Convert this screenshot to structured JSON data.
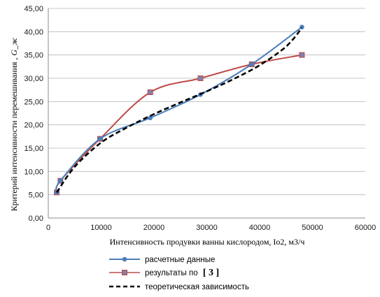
{
  "chart_data": {
    "type": "line",
    "title": "",
    "xlabel": "Интенсивность продувки ванны кислородом,  Io2, м3/ч",
    "ylabel_prefix": "Критерий интенсивности перемешивания ,  ",
    "ylabel_symbol": "G_ж",
    "xlim": [
      0,
      60000
    ],
    "ylim": [
      0,
      45
    ],
    "x_ticks": [
      0,
      10000,
      20000,
      30000,
      40000,
      50000,
      60000
    ],
    "x_tick_labels": [
      "0",
      "10000",
      "20000",
      "30000",
      "40000",
      "50000",
      "60000"
    ],
    "y_ticks": [
      0,
      5,
      10,
      15,
      20,
      25,
      30,
      35,
      40,
      45
    ],
    "y_tick_labels": [
      "0,00",
      "5,00",
      "10,00",
      "15,00",
      "20,00",
      "25,00",
      "30,00",
      "35,00",
      "40,00",
      "45,00"
    ],
    "grid": true,
    "legend_position": "bottom",
    "series": [
      {
        "name": "расчетные данные",
        "color": "#4a7ebb",
        "marker": "circle",
        "style": "solid",
        "x": [
          1600,
          2300,
          9800,
          19300,
          28800,
          38500,
          48000
        ],
        "y": [
          5.5,
          8.0,
          17.0,
          21.5,
          26.5,
          33.0,
          41.0
        ]
      },
      {
        "name": "результаты по",
        "ref": "[ 3 ]",
        "color": "#be4b48",
        "marker": "square",
        "style": "solid",
        "x": [
          1600,
          2300,
          9800,
          19300,
          28800,
          38500,
          48000
        ],
        "y": [
          5.5,
          8.0,
          17.0,
          27.0,
          30.0,
          33.0,
          35.0
        ]
      },
      {
        "name": "теоретическая  зависимость",
        "color": "#000000",
        "marker": "none",
        "style": "dashed",
        "x": [
          1600,
          5000,
          10000,
          15000,
          20000,
          25000,
          30000,
          35000,
          40000,
          45000,
          48000
        ],
        "y": [
          5.5,
          11.0,
          16.2,
          19.5,
          22.3,
          24.8,
          27.2,
          29.8,
          32.8,
          36.8,
          40.8
        ]
      }
    ]
  }
}
